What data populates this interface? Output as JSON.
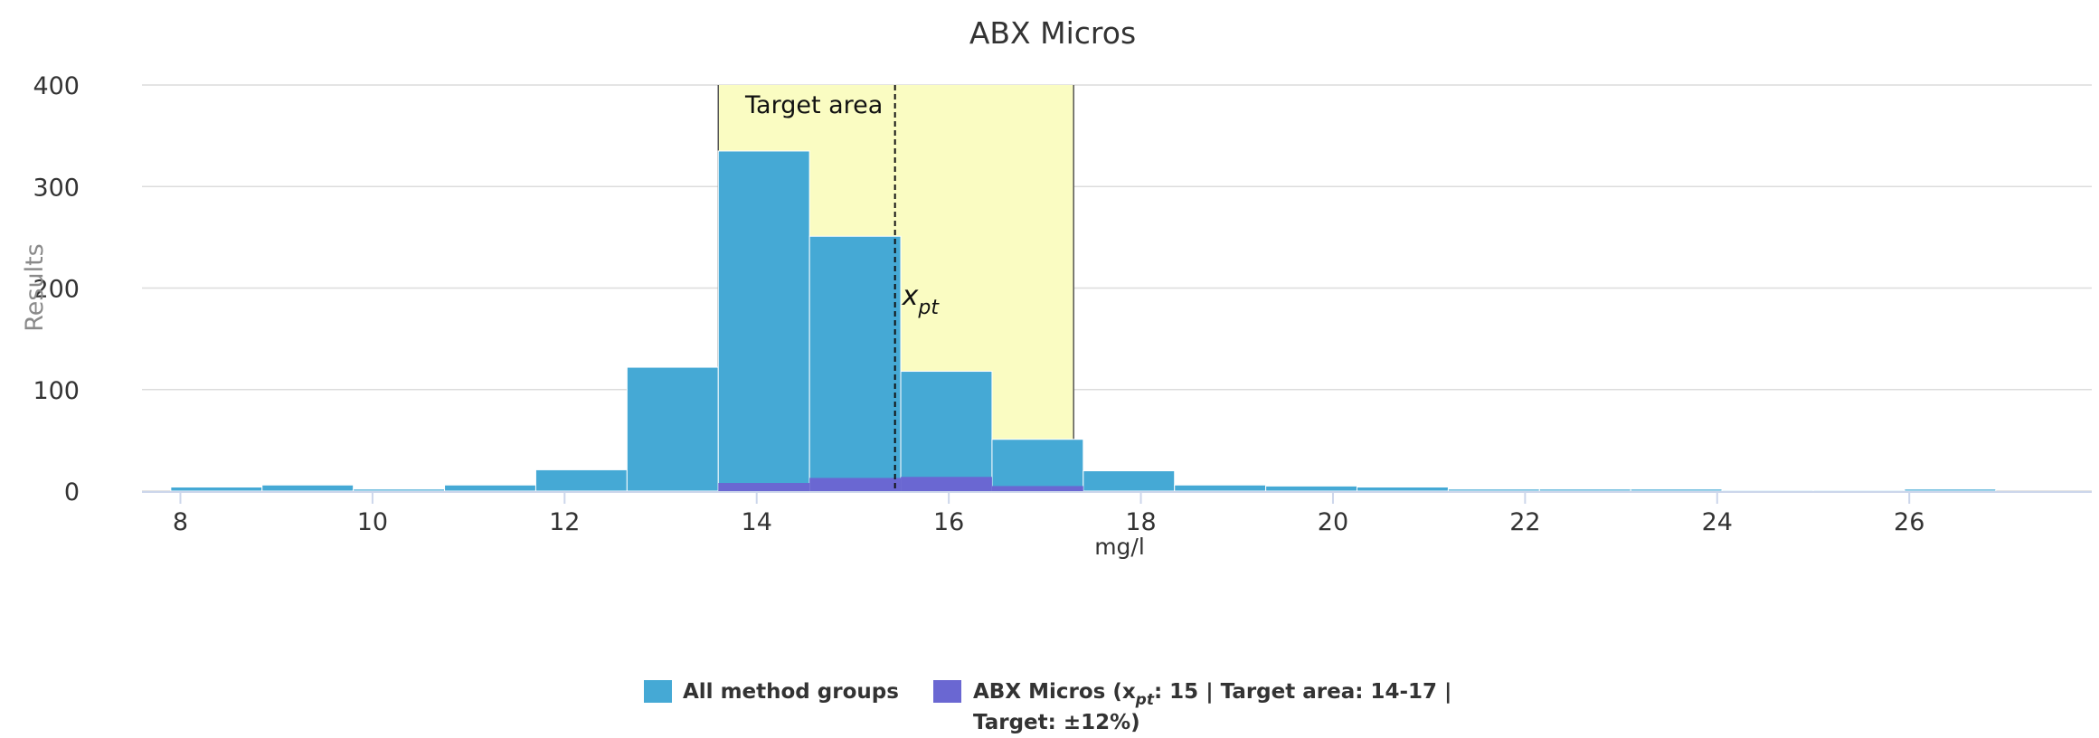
{
  "chart_data": {
    "type": "bar",
    "title": "ABX Micros",
    "xlabel": "mg/l",
    "ylabel": "Results",
    "xlim": [
      7.6,
      27.9
    ],
    "ylim": [
      0,
      400
    ],
    "x_ticks": [
      8,
      10,
      12,
      14,
      16,
      18,
      20,
      22,
      24,
      26
    ],
    "y_ticks": [
      0,
      100,
      200,
      300,
      400
    ],
    "grid": true,
    "bin_edges": [
      7.9,
      8.85,
      9.8,
      10.75,
      11.7,
      12.65,
      13.6,
      14.55,
      15.5,
      16.45,
      17.4,
      18.35,
      19.3,
      20.25,
      21.2,
      22.15,
      23.1,
      24.05,
      25.0,
      25.95,
      26.9
    ],
    "series": [
      {
        "name": "All method groups",
        "color": "#45a9d5",
        "values": [
          4,
          6,
          2,
          6,
          21,
          122,
          335,
          251,
          118,
          51,
          20,
          6,
          5,
          4,
          2,
          2,
          2,
          1,
          1,
          2
        ]
      },
      {
        "name": "ABX Micros",
        "color": "#6a67d2",
        "values": [
          0,
          0,
          0,
          0,
          0,
          0,
          8,
          13,
          14,
          5,
          0,
          0,
          0,
          0,
          0,
          0,
          0,
          0,
          0,
          0
        ]
      }
    ],
    "target_area": {
      "label": "Target area",
      "from": 13.6,
      "to": 17.3,
      "color": "#fafcc2"
    },
    "reference_line": {
      "label": "x",
      "subscript": "pt",
      "value": 15.44
    },
    "legend": {
      "placement": "bottom-center",
      "items": [
        {
          "label": "All method groups",
          "color": "#45a9d5"
        },
        {
          "label_parts": [
            "ABX Micros (x",
            "pt",
            ": 15 | Target area: 14-17 |"
          ],
          "label_line2": "Target: ±12%)",
          "color": "#6a67d2"
        }
      ]
    }
  },
  "colors": {
    "grid": "#dcdcdc",
    "axis": "#ccd6eb",
    "band_border": "#555555",
    "text": "#333333",
    "axis_title": "#8a8a8a"
  }
}
